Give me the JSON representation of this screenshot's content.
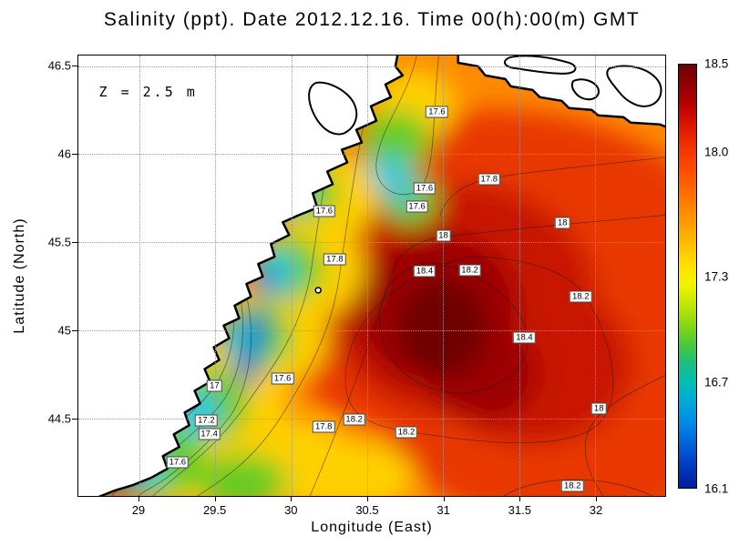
{
  "title": "Salinity (ppt). Date 2012.12.16. Time 00(h):00(m) GMT",
  "chart_data": {
    "type": "heatmap",
    "title": "Salinity (ppt). Date 2012.12.16. Time 00(h):00(m) GMT",
    "depth_label": "Z = 2.5 m",
    "units": "ppt",
    "xlabel": "Longitude (East)",
    "ylabel": "Latitude (North)",
    "xlim": [
      28.6,
      32.46
    ],
    "ylim": [
      44.06,
      46.56
    ],
    "x_ticks": [
      "29",
      "29.5",
      "30",
      "30.5",
      "31",
      "31.5",
      "32"
    ],
    "y_ticks": [
      "44.5",
      "45",
      "45.5",
      "46",
      "46.5"
    ],
    "grid": true,
    "legend_position": "right-colorbar",
    "colorbar": {
      "min": 16.1,
      "max": 18.5,
      "tick_labels": [
        "18.5",
        "18.0",
        "17.3",
        "16.7",
        "16.1"
      ],
      "colors_top_to_bottom": [
        "#6f0000",
        "#d91400",
        "#ff7300",
        "#ffe400",
        "#8fd911",
        "#00bfb2",
        "#0087e6",
        "#001f99"
      ]
    },
    "contour_levels": [
      17,
      17.2,
      17.4,
      17.6,
      17.8,
      18,
      18.2,
      18.4
    ],
    "contour_labels": [
      {
        "value": "17.6",
        "fx": 0.611,
        "fy": 0.128
      },
      {
        "value": "17.8",
        "fx": 0.7,
        "fy": 0.28
      },
      {
        "value": "17.6",
        "fx": 0.59,
        "fy": 0.302
      },
      {
        "value": "17.6",
        "fx": 0.577,
        "fy": 0.342
      },
      {
        "value": "17.6",
        "fx": 0.419,
        "fy": 0.354
      },
      {
        "value": "18",
        "fx": 0.825,
        "fy": 0.381
      },
      {
        "value": "18",
        "fx": 0.622,
        "fy": 0.409
      },
      {
        "value": "17.8",
        "fx": 0.437,
        "fy": 0.463
      },
      {
        "value": "18.4",
        "fx": 0.59,
        "fy": 0.49
      },
      {
        "value": "18.2",
        "fx": 0.667,
        "fy": 0.488
      },
      {
        "value": "18.2",
        "fx": 0.856,
        "fy": 0.547
      },
      {
        "value": "18.4",
        "fx": 0.76,
        "fy": 0.64
      },
      {
        "value": "17.6",
        "fx": 0.348,
        "fy": 0.733
      },
      {
        "value": "17",
        "fx": 0.232,
        "fy": 0.751
      },
      {
        "value": "17.2",
        "fx": 0.218,
        "fy": 0.829
      },
      {
        "value": "17.4",
        "fx": 0.223,
        "fy": 0.86
      },
      {
        "value": "18",
        "fx": 0.887,
        "fy": 0.802
      },
      {
        "value": "17.8",
        "fx": 0.418,
        "fy": 0.844
      },
      {
        "value": "18.2",
        "fx": 0.47,
        "fy": 0.827
      },
      {
        "value": "18.2",
        "fx": 0.559,
        "fy": 0.856
      },
      {
        "value": "17.6",
        "fx": 0.169,
        "fy": 0.924
      },
      {
        "value": "18.2",
        "fx": 0.842,
        "fy": 0.977
      }
    ],
    "field_summary": {
      "high_salinity_core_value": 18.4,
      "high_salinity_core_location": {
        "lon": 31.0,
        "lat": 45.1
      },
      "low_salinity_coastal_value": 16.1,
      "description_visible_range": [
        16.1,
        18.5
      ]
    }
  }
}
